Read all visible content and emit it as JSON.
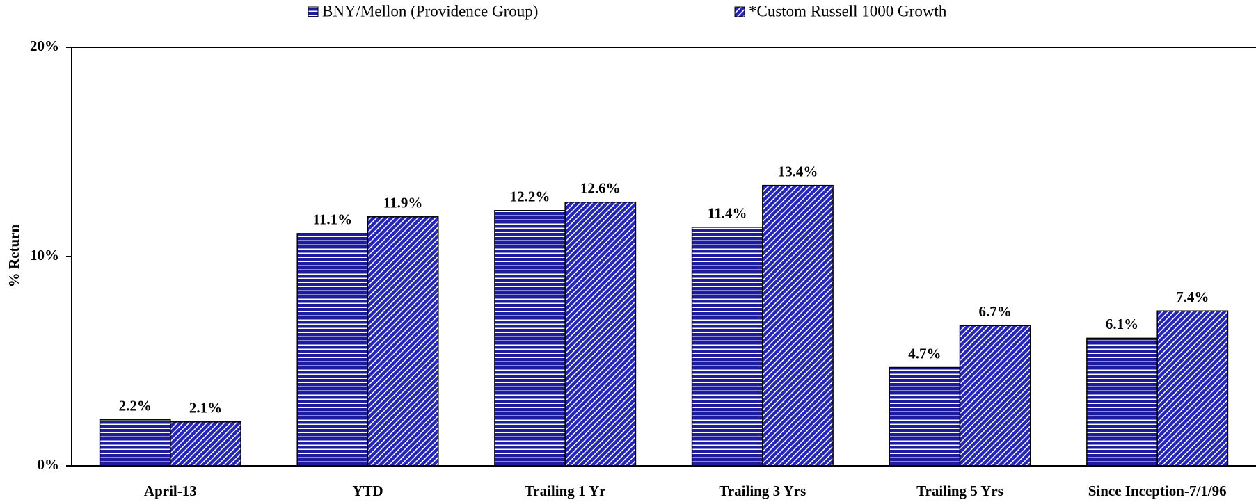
{
  "chart_data": {
    "type": "bar",
    "categories": [
      "April-13",
      "YTD",
      "Trailing 1 Yr",
      "Trailing 3 Yrs",
      "Trailing 5 Yrs",
      "Since Inception-7/1/96"
    ],
    "series": [
      {
        "name": "BNY/Mellon (Providence Group)",
        "color": "#1c1c9c",
        "pattern": "horizontal",
        "values": [
          2.2,
          11.1,
          12.2,
          11.4,
          4.7,
          6.1
        ],
        "value_labels": [
          "2.2%",
          "11.1%",
          "12.2%",
          "11.4%",
          "4.7%",
          "6.1%"
        ]
      },
      {
        "name": "*Custom Russell 1000 Growth",
        "color": "#2626b4",
        "pattern": "diagonal",
        "values": [
          2.1,
          11.9,
          12.6,
          13.4,
          6.7,
          7.4
        ],
        "value_labels": [
          "2.1%",
          "11.9%",
          "12.6%",
          "13.4%",
          "6.7%",
          "7.4%"
        ]
      }
    ],
    "ylabel": "% Return",
    "ylim": [
      0,
      20
    ],
    "yticks": [
      {
        "value": 0,
        "label": "0%"
      },
      {
        "value": 10,
        "label": "10%"
      },
      {
        "value": 20,
        "label": "20%"
      }
    ],
    "legend": "top"
  }
}
